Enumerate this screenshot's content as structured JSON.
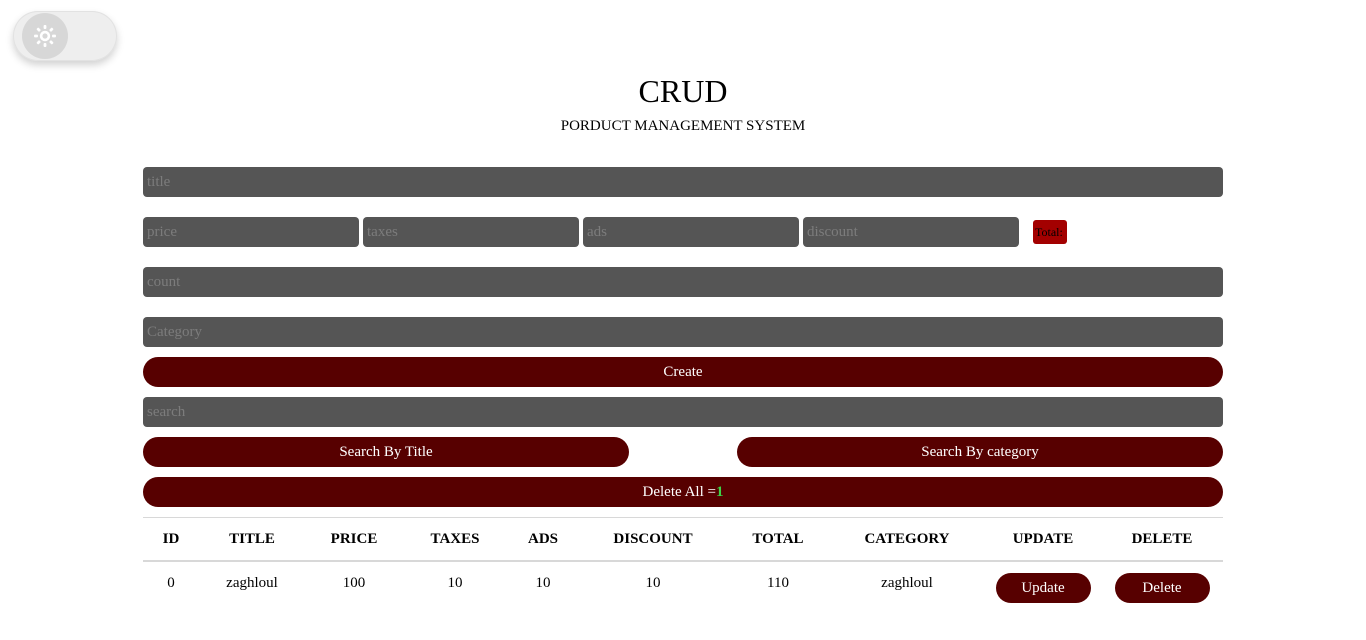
{
  "header": {
    "title": "CRUD",
    "subtitle": "PORDUCT MANAGEMENT SYSTEM"
  },
  "theme_toggle": {
    "icon": "sun-icon"
  },
  "form": {
    "title_placeholder": "title",
    "price_placeholder": "price",
    "taxes_placeholder": "taxes",
    "ads_placeholder": "ads",
    "discount_placeholder": "discount",
    "total_label": "Total:",
    "count_placeholder": "count",
    "category_placeholder": "Category",
    "create_label": "Create"
  },
  "search": {
    "placeholder": "search",
    "by_title_label": "Search By Title",
    "by_category_label": "Search By category"
  },
  "delete_all": {
    "label": "Delete All =",
    "count": "1"
  },
  "table": {
    "headers": [
      "ID",
      "TITLE",
      "PRICE",
      "TAXES",
      "ADS",
      "DISCOUNT",
      "TOTAL",
      "CATEGORY",
      "UPDATE",
      "DELETE"
    ],
    "rows": [
      {
        "id": "0",
        "title": "zaghloul",
        "price": "100",
        "taxes": "10",
        "ads": "10",
        "discount": "10",
        "total": "110",
        "category": "zaghloul",
        "update_label": "Update",
        "delete_label": "Delete"
      }
    ]
  },
  "colors": {
    "button": "#570000",
    "input": "#555555",
    "total_badge": "#a30000",
    "count_highlight": "#3cd447"
  }
}
